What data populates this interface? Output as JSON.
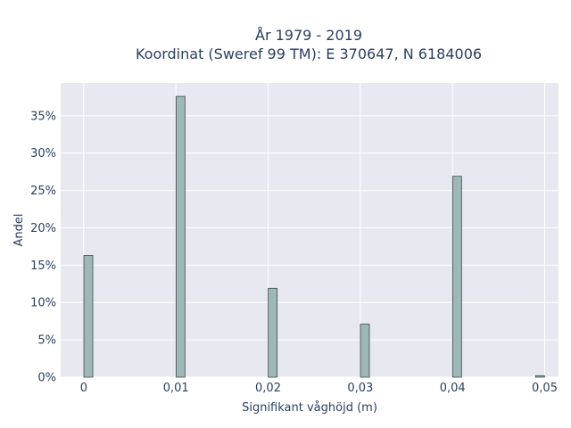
{
  "chart_data": {
    "type": "bar",
    "title_lines": [
      "År 1979 - 2019",
      "Koordinat (Sweref 99 TM): E 370647, N 6184006"
    ],
    "xlabel": "Signifikant våghöjd (m)",
    "ylabel": "Andel",
    "x_ticks": [
      "0",
      "0,01",
      "0,02",
      "0,03",
      "0,04",
      "0,05"
    ],
    "y_ticks": [
      "0%",
      "5%",
      "10%",
      "15%",
      "20%",
      "25%",
      "30%",
      "35%"
    ],
    "xlim": [
      -0.0025,
      0.0515
    ],
    "ylim": [
      0,
      39.4
    ],
    "grid": true,
    "bar_color": "#9fb7b7",
    "bar_edge": "#3c4a4a",
    "background": "#e8e8f1",
    "x": [
      0.0005,
      0.0105,
      0.0205,
      0.0305,
      0.0405,
      0.0495
    ],
    "values": [
      16.3,
      37.6,
      11.9,
      7.1,
      26.9,
      0.2
    ]
  }
}
